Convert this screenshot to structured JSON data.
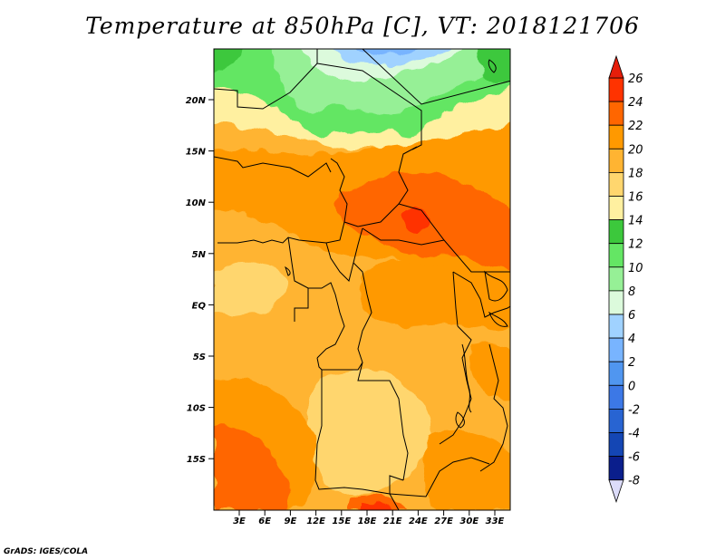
{
  "title": "Temperature at 850hPa [C], VT: 2018121706",
  "credit": "GrADS: IGES/COLA",
  "axes": {
    "lat_ticks": [
      "20N",
      "15N",
      "10N",
      "5N",
      "EQ",
      "5S",
      "10S",
      "15S"
    ],
    "lon_ticks": [
      "3E",
      "6E",
      "9E",
      "12E",
      "15E",
      "18E",
      "21E",
      "24E",
      "27E",
      "30E",
      "33E"
    ]
  },
  "colorbar": {
    "levels": [
      "26",
      "24",
      "22",
      "20",
      "18",
      "16",
      "14",
      "12",
      "10",
      "8",
      "6",
      "4",
      "2",
      "0",
      "-2",
      "-4",
      "-6",
      "-8"
    ],
    "colors": [
      "#ff3300",
      "#ff6600",
      "#ff9900",
      "#ffb432",
      "#ffd66e",
      "#fff0a0",
      "#3cc83c",
      "#64e664",
      "#96f096",
      "#dcfadc",
      "#a0d2ff",
      "#78b4ff",
      "#5096f0",
      "#3c78e6",
      "#2864d2",
      "#1446b4",
      "#0a1e8c"
    ],
    "over_color": "#e61e0a",
    "under_color": "#dcdcfa"
  }
}
